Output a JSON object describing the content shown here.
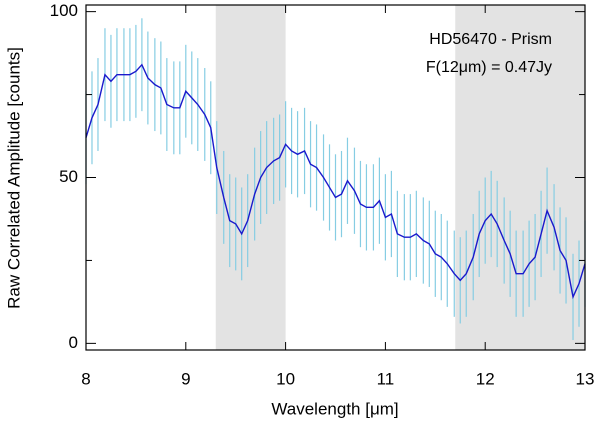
{
  "chart_data": {
    "type": "line",
    "xlabel": "Wavelength [μm]",
    "ylabel": "Raw Correlated Amplitude [counts]",
    "annotations": [
      "HD56470 - Prism",
      "F(12μm) = 0.47Jy"
    ],
    "xlim": [
      8,
      13
    ],
    "ylim": [
      -2,
      102
    ],
    "xticks": [
      8,
      9,
      10,
      11,
      12,
      13
    ],
    "yticks": [
      0,
      50,
      100
    ],
    "yminorticks": [
      25,
      75
    ],
    "shaded_regions": [
      [
        9.3,
        10
      ],
      [
        11.7,
        13
      ]
    ],
    "shade_color": "#e3e3e3",
    "error_color": "#86cde3",
    "x": [
      8.0,
      8.06,
      8.12,
      8.19,
      8.25,
      8.31,
      8.38,
      8.44,
      8.5,
      8.56,
      8.62,
      8.69,
      8.75,
      8.81,
      8.88,
      8.94,
      9.0,
      9.06,
      9.12,
      9.19,
      9.25,
      9.31,
      9.38,
      9.44,
      9.5,
      9.56,
      9.62,
      9.69,
      9.75,
      9.81,
      9.88,
      9.94,
      10.0,
      10.06,
      10.12,
      10.19,
      10.25,
      10.31,
      10.38,
      10.44,
      10.5,
      10.56,
      10.62,
      10.69,
      10.75,
      10.81,
      10.88,
      10.94,
      11.0,
      11.06,
      11.12,
      11.19,
      11.25,
      11.31,
      11.38,
      11.44,
      11.5,
      11.56,
      11.62,
      11.69,
      11.75,
      11.81,
      11.88,
      11.94,
      12.0,
      12.06,
      12.12,
      12.19,
      12.25,
      12.31,
      12.38,
      12.44,
      12.5,
      12.56,
      12.62,
      12.69,
      12.75,
      12.81,
      12.88,
      12.94,
      13.0
    ],
    "series": [
      {
        "name": "HD56470",
        "color": "#1a1acc",
        "values": [
          62,
          68,
          72,
          81,
          79,
          81,
          81,
          81,
          82,
          84,
          80,
          78,
          77,
          72,
          71,
          71,
          76,
          74,
          72,
          69,
          65,
          53,
          44,
          37,
          36,
          33,
          37,
          45,
          50,
          53,
          55,
          56,
          60,
          58,
          57,
          58,
          54,
          53,
          50,
          47,
          44,
          45,
          49,
          46,
          42,
          41,
          41,
          43,
          38,
          39,
          33,
          32,
          32,
          33,
          31,
          30,
          27,
          26,
          24,
          21,
          19,
          21,
          26,
          33,
          37,
          39,
          36,
          31,
          27,
          21,
          21,
          24,
          26,
          33,
          40,
          35,
          28,
          25,
          14,
          18,
          24
        ],
        "errors": [
          14,
          14,
          14,
          14,
          14,
          14,
          14,
          14,
          14,
          14,
          14,
          14,
          14,
          14,
          14,
          14,
          14,
          14,
          14,
          14,
          14,
          14,
          14,
          14,
          14,
          14,
          14,
          14,
          14,
          14,
          13,
          13,
          13,
          13,
          13,
          13,
          13,
          13,
          13,
          13,
          13,
          13,
          13,
          13,
          13,
          13,
          13,
          13,
          13,
          13,
          13,
          13,
          13,
          13,
          13,
          13,
          13,
          13,
          13,
          13,
          13,
          13,
          13,
          13,
          13,
          13,
          13,
          13,
          13,
          13,
          13,
          13,
          13,
          13,
          13,
          13,
          13,
          13,
          13,
          13,
          13
        ]
      }
    ]
  }
}
